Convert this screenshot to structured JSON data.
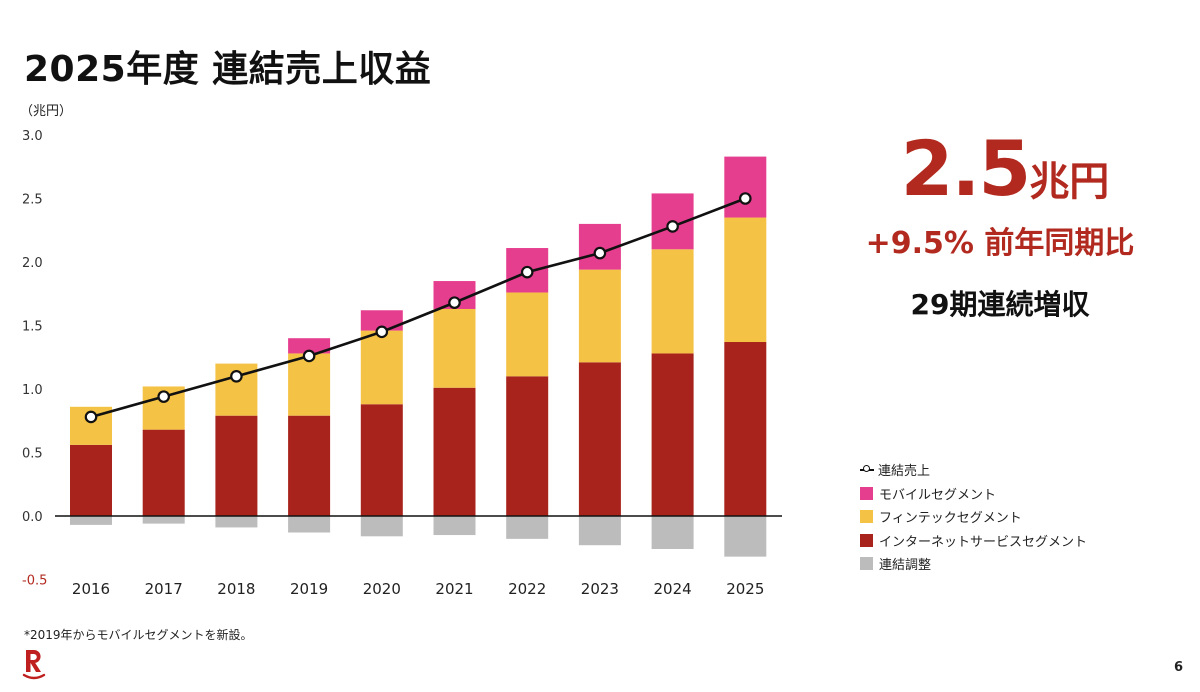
{
  "slide": {
    "title": "2025年度 連結売上収益",
    "unit_label": "（兆円）",
    "kpi_value": "2.5",
    "kpi_unit": "兆円",
    "kpi_growth": "+9.5% 前年同期比",
    "kpi_streak": "29期連続増収",
    "footnote": "*2019年からモバイルセグメントを新設。",
    "page_number": "6"
  },
  "legend": {
    "line": "連結売上",
    "mobile": "モバイルセグメント",
    "fintech": "フィンテックセグメント",
    "internet": "インターネットサービスセグメント",
    "adjust": "連結調整"
  },
  "colors": {
    "internet": "#a8231b",
    "fintech": "#f4c245",
    "mobile": "#e63e8f",
    "adjust": "#bcbcbc",
    "accent": "#b22a1f",
    "line": "#111111"
  },
  "chart_data": {
    "type": "bar",
    "stacked": true,
    "categories": [
      "2016",
      "2017",
      "2018",
      "2019",
      "2020",
      "2021",
      "2022",
      "2023",
      "2024",
      "2025"
    ],
    "ylim": [
      -0.5,
      3.0
    ],
    "yticks": [
      "3.0",
      "2.5",
      "2.0",
      "1.5",
      "1.0",
      "0.5",
      "0.0",
      "-0.5"
    ],
    "series": [
      {
        "key": "internet",
        "name": "インターネットサービスセグメント",
        "values": [
          0.56,
          0.68,
          0.79,
          0.79,
          0.88,
          1.01,
          1.1,
          1.21,
          1.28,
          1.37
        ]
      },
      {
        "key": "fintech",
        "name": "フィンテックセグメント",
        "values": [
          0.3,
          0.34,
          0.41,
          0.49,
          0.58,
          0.62,
          0.66,
          0.73,
          0.82,
          0.98
        ]
      },
      {
        "key": "mobile",
        "name": "モバイルセグメント",
        "values": [
          0,
          0,
          0,
          0.12,
          0.16,
          0.22,
          0.35,
          0.36,
          0.44,
          0.48
        ]
      },
      {
        "key": "adjust",
        "name": "連結調整",
        "values": [
          -0.07,
          -0.06,
          -0.09,
          -0.13,
          -0.16,
          -0.15,
          -0.18,
          -0.23,
          -0.26,
          -0.32
        ]
      }
    ],
    "line": {
      "name": "連結売上",
      "values": [
        0.78,
        0.94,
        1.1,
        1.26,
        1.45,
        1.68,
        1.92,
        2.07,
        2.28,
        2.5
      ]
    }
  }
}
